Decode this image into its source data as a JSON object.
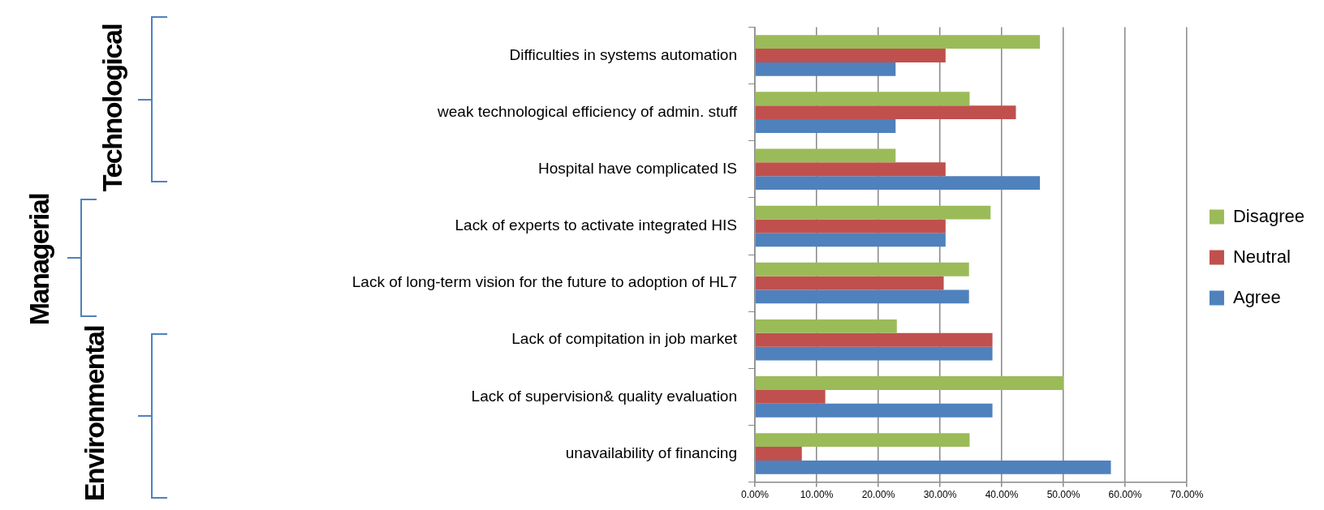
{
  "chart_data": {
    "type": "bar",
    "orientation": "horizontal",
    "categories": [
      "Difficulties in systems automation",
      "weak technological efficiency of admin. stuff",
      "Hospital have complicated IS",
      "Lack of experts to activate integrated HIS",
      "Lack of long-term vision for the future to adoption of HL7",
      "Lack of compitation in job market",
      "Lack of supervision& quality evaluation",
      "unavailability of financing"
    ],
    "series": [
      {
        "name": "Disagree",
        "color": "#9bbb59",
        "values": [
          46.2,
          34.8,
          22.8,
          38.2,
          34.7,
          23.0,
          50.0,
          34.8
        ]
      },
      {
        "name": "Neutral",
        "color": "#c0504d",
        "values": [
          30.9,
          42.3,
          30.9,
          30.9,
          30.6,
          38.5,
          11.4,
          7.6
        ]
      },
      {
        "name": "Agree",
        "color": "#4f81bd",
        "values": [
          22.8,
          22.8,
          46.2,
          30.9,
          34.7,
          38.5,
          38.5,
          57.7
        ]
      }
    ],
    "xlim": [
      0,
      70
    ],
    "xticks": [
      {
        "value": 0,
        "label": "0.00%"
      },
      {
        "value": 10,
        "label": "10.00%"
      },
      {
        "value": 20,
        "label": "20.00%"
      },
      {
        "value": 30,
        "label": "30.00%"
      },
      {
        "value": 40,
        "label": "40.00%"
      },
      {
        "value": 50,
        "label": "50.00%"
      },
      {
        "value": 60,
        "label": "60.00%"
      },
      {
        "value": 70,
        "label": "70.00%"
      }
    ],
    "grid": "x",
    "legend": "right",
    "annotations": [
      "Technological",
      "Managerial",
      "Environmental"
    ]
  }
}
